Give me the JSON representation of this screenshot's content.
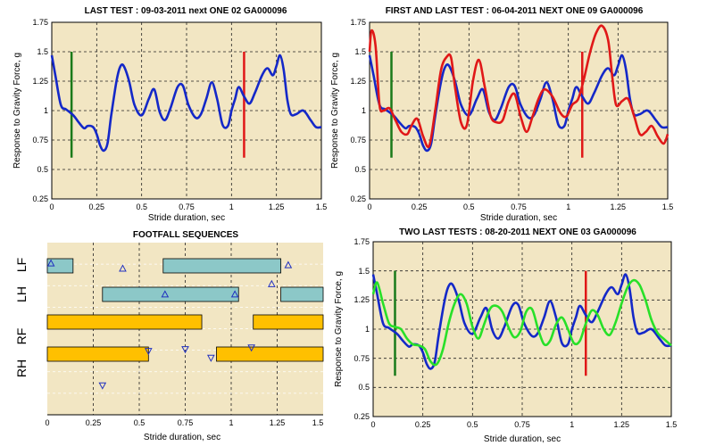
{
  "colors": {
    "panel_bg": "#f2e6c3",
    "grid": "#222222",
    "blue": "#1428c8",
    "red": "#e01818",
    "green_marker": "#1a7a1a",
    "light_green": "#28e028",
    "teal_bar": "#8cc8c8",
    "orange_bar": "#ffc000"
  },
  "chart_data": [
    {
      "id": "top-left",
      "type": "line",
      "title": "LAST TEST : 09-03-2011  next ONE 02 GA000096",
      "xlabel": "Stride duration, sec",
      "ylabel": "Response to Gravity Force, g",
      "xlim": [
        0,
        1.5
      ],
      "ylim": [
        0.25,
        1.75
      ],
      "xticks": [
        "0",
        "0.25",
        "0.5",
        "0.75",
        "1",
        "1.25",
        "1.5"
      ],
      "yticks": [
        "0.25",
        "0.5",
        "0.75",
        "1",
        "1.25",
        "1.5",
        "1.75"
      ],
      "grid": true,
      "markers": [
        {
          "x": 0.11,
          "y0": 0.6,
          "y1": 1.5,
          "color": "green_marker"
        },
        {
          "x": 1.07,
          "y0": 0.6,
          "y1": 1.5,
          "color": "red"
        }
      ],
      "series": [
        {
          "color": "blue",
          "x": [
            0,
            0.02,
            0.05,
            0.08,
            0.12,
            0.15,
            0.18,
            0.2,
            0.23,
            0.25,
            0.27,
            0.29,
            0.31,
            0.33,
            0.36,
            0.38,
            0.4,
            0.43,
            0.46,
            0.5,
            0.54,
            0.57,
            0.6,
            0.63,
            0.66,
            0.7,
            0.73,
            0.76,
            0.8,
            0.83,
            0.86,
            0.89,
            0.92,
            0.95,
            0.98,
            1.0,
            1.02,
            1.04,
            1.07,
            1.1,
            1.13,
            1.17,
            1.2,
            1.23,
            1.25,
            1.27,
            1.29,
            1.31,
            1.33,
            1.36,
            1.4,
            1.44,
            1.47,
            1.5
          ],
          "y": [
            1.47,
            1.3,
            1.05,
            1.01,
            0.96,
            0.9,
            0.85,
            0.87,
            0.86,
            0.8,
            0.7,
            0.66,
            0.72,
            0.95,
            1.25,
            1.37,
            1.38,
            1.25,
            1.05,
            0.96,
            1.1,
            1.18,
            0.99,
            0.92,
            1.02,
            1.2,
            1.21,
            1.05,
            0.94,
            0.97,
            1.1,
            1.24,
            1.1,
            0.88,
            0.87,
            1.0,
            1.1,
            1.2,
            1.12,
            1.06,
            1.15,
            1.3,
            1.36,
            1.3,
            1.38,
            1.47,
            1.35,
            1.1,
            0.97,
            0.97,
            1.0,
            0.92,
            0.86,
            0.86
          ]
        }
      ]
    },
    {
      "id": "top-right",
      "type": "line",
      "title": "FIRST AND LAST TEST : 06-04-2011  NEXT ONE 09 GA000096",
      "xlabel": "Stride duration, sec",
      "ylabel": "Response to Gravity Force, g",
      "xlim": [
        0,
        1.5
      ],
      "ylim": [
        0.25,
        1.75
      ],
      "xticks": [
        "0",
        "0.25",
        "0.5",
        "0.75",
        "1",
        "1.25",
        "1.5"
      ],
      "yticks": [
        "0.25",
        "0.5",
        "0.75",
        "1",
        "1.25",
        "1.5",
        "1.75"
      ],
      "grid": true,
      "markers": [
        {
          "x": 0.11,
          "y0": 0.6,
          "y1": 1.5,
          "color": "green_marker"
        },
        {
          "x": 1.07,
          "y0": 0.6,
          "y1": 1.5,
          "color": "red"
        }
      ],
      "series": [
        {
          "color": "blue",
          "x": [
            0,
            0.02,
            0.05,
            0.08,
            0.12,
            0.15,
            0.18,
            0.2,
            0.23,
            0.25,
            0.27,
            0.29,
            0.31,
            0.33,
            0.36,
            0.38,
            0.4,
            0.43,
            0.46,
            0.5,
            0.54,
            0.57,
            0.6,
            0.63,
            0.66,
            0.7,
            0.73,
            0.76,
            0.8,
            0.83,
            0.86,
            0.89,
            0.92,
            0.95,
            0.98,
            1.0,
            1.02,
            1.04,
            1.07,
            1.1,
            1.13,
            1.17,
            1.2,
            1.23,
            1.25,
            1.27,
            1.29,
            1.31,
            1.33,
            1.36,
            1.4,
            1.44,
            1.47,
            1.5
          ],
          "y": [
            1.47,
            1.3,
            1.05,
            1.01,
            0.96,
            0.9,
            0.85,
            0.87,
            0.86,
            0.8,
            0.7,
            0.66,
            0.72,
            0.95,
            1.25,
            1.37,
            1.38,
            1.25,
            1.05,
            0.96,
            1.1,
            1.18,
            0.99,
            0.92,
            1.02,
            1.2,
            1.21,
            1.05,
            0.94,
            0.97,
            1.1,
            1.24,
            1.1,
            0.88,
            0.87,
            1.0,
            1.1,
            1.2,
            1.12,
            1.06,
            1.15,
            1.3,
            1.36,
            1.3,
            1.38,
            1.47,
            1.35,
            1.1,
            0.97,
            0.97,
            1.0,
            0.92,
            0.86,
            0.86
          ]
        },
        {
          "color": "red",
          "x": [
            0,
            0.01,
            0.03,
            0.05,
            0.07,
            0.1,
            0.13,
            0.16,
            0.19,
            0.21,
            0.24,
            0.27,
            0.3,
            0.33,
            0.36,
            0.39,
            0.41,
            0.43,
            0.46,
            0.49,
            0.52,
            0.55,
            0.58,
            0.61,
            0.64,
            0.67,
            0.7,
            0.73,
            0.76,
            0.79,
            0.82,
            0.85,
            0.88,
            0.92,
            0.96,
            0.99,
            1.02,
            1.05,
            1.08,
            1.11,
            1.14,
            1.17,
            1.2,
            1.22,
            1.24,
            1.27,
            1.3,
            1.33,
            1.36,
            1.39,
            1.42,
            1.45,
            1.48,
            1.5
          ],
          "y": [
            1.5,
            1.68,
            1.55,
            1.05,
            1.0,
            1.02,
            0.92,
            0.82,
            0.8,
            0.87,
            0.93,
            0.78,
            0.7,
            1.0,
            1.35,
            1.46,
            1.45,
            1.2,
            0.9,
            0.88,
            1.25,
            1.43,
            1.2,
            0.95,
            0.9,
            0.92,
            1.08,
            1.14,
            0.95,
            0.82,
            0.95,
            1.1,
            1.18,
            1.12,
            0.98,
            0.95,
            1.05,
            1.1,
            1.28,
            1.5,
            1.66,
            1.72,
            1.6,
            1.3,
            1.05,
            1.08,
            1.1,
            0.96,
            0.8,
            0.82,
            0.87,
            0.78,
            0.72,
            0.8
          ]
        }
      ]
    },
    {
      "id": "bottom-left",
      "type": "gantt",
      "title": "FOOTFALL SEQUENCES",
      "xlabel": "Stride duration, sec",
      "xlim": [
        0,
        1.5
      ],
      "xticks": [
        "0",
        "0.25",
        "0.5",
        "0.75",
        "1",
        "1.25",
        "1.5"
      ],
      "rows": [
        "LF",
        "LH",
        "RF",
        "RH"
      ],
      "bars": [
        {
          "row": 0,
          "x0": 0,
          "x1": 0.14,
          "color": "teal_bar"
        },
        {
          "row": 0,
          "x0": 0.63,
          "x1": 1.27,
          "color": "teal_bar"
        },
        {
          "row": 1,
          "x0": 0.3,
          "x1": 1.04,
          "color": "teal_bar"
        },
        {
          "row": 1,
          "x0": 1.27,
          "x1": 1.5,
          "color": "teal_bar"
        },
        {
          "row": 2,
          "x0": 0,
          "x1": 0.84,
          "color": "orange_bar"
        },
        {
          "row": 2,
          "x0": 1.12,
          "x1": 1.5,
          "color": "orange_bar"
        },
        {
          "row": 3,
          "x0": 0,
          "x1": 0.55,
          "color": "orange_bar"
        },
        {
          "row": 3,
          "x0": 0.92,
          "x1": 1.5,
          "color": "orange_bar"
        }
      ],
      "up_markers": [
        {
          "x": 0.02,
          "y": 0.12
        },
        {
          "x": 0.41,
          "y": 0.15
        },
        {
          "x": 0.64,
          "y": 0.3
        },
        {
          "x": 1.02,
          "y": 0.3
        },
        {
          "x": 1.22,
          "y": 0.24
        },
        {
          "x": 1.31,
          "y": 0.13
        }
      ],
      "down_markers": [
        {
          "x": 0.55,
          "y": 0.63
        },
        {
          "x": 0.75,
          "y": 0.62
        },
        {
          "x": 0.89,
          "y": 0.67
        },
        {
          "x": 1.11,
          "y": 0.61
        },
        {
          "x": 0.3,
          "y": 0.83
        }
      ]
    },
    {
      "id": "bottom-right",
      "type": "line",
      "title": "TWO LAST TESTS : 08-20-2011  NEXT ONE 03 GA000096",
      "xlabel": "Stride duration, sec",
      "ylabel": "Response to Gravity Force, g",
      "xlim": [
        0,
        1.5
      ],
      "ylim": [
        0.25,
        1.75
      ],
      "xticks": [
        "0",
        "0.25",
        "0.5",
        "0.75",
        "1",
        "1.25",
        "1.5"
      ],
      "yticks": [
        "0.25",
        "0.5",
        "0.75",
        "1",
        "1.25",
        "1.5",
        "1.75"
      ],
      "grid": true,
      "markers": [
        {
          "x": 0.11,
          "y0": 0.6,
          "y1": 1.5,
          "color": "green_marker"
        },
        {
          "x": 1.07,
          "y0": 0.6,
          "y1": 1.5,
          "color": "red"
        }
      ],
      "series": [
        {
          "color": "blue",
          "x": [
            0,
            0.02,
            0.05,
            0.08,
            0.12,
            0.15,
            0.18,
            0.2,
            0.23,
            0.25,
            0.27,
            0.29,
            0.31,
            0.33,
            0.36,
            0.38,
            0.4,
            0.43,
            0.46,
            0.5,
            0.54,
            0.57,
            0.6,
            0.63,
            0.66,
            0.7,
            0.73,
            0.76,
            0.8,
            0.83,
            0.86,
            0.89,
            0.92,
            0.95,
            0.98,
            1.0,
            1.02,
            1.04,
            1.07,
            1.1,
            1.13,
            1.17,
            1.2,
            1.23,
            1.25,
            1.27,
            1.29,
            1.31,
            1.33,
            1.36,
            1.4,
            1.44,
            1.47,
            1.5
          ],
          "y": [
            1.47,
            1.3,
            1.05,
            1.01,
            0.96,
            0.9,
            0.85,
            0.87,
            0.86,
            0.8,
            0.7,
            0.66,
            0.72,
            0.95,
            1.25,
            1.37,
            1.38,
            1.25,
            1.05,
            0.96,
            1.1,
            1.18,
            0.99,
            0.92,
            1.02,
            1.2,
            1.21,
            1.05,
            0.94,
            0.97,
            1.1,
            1.24,
            1.1,
            0.88,
            0.87,
            1.0,
            1.1,
            1.2,
            1.12,
            1.06,
            1.15,
            1.3,
            1.36,
            1.3,
            1.38,
            1.47,
            1.35,
            1.1,
            0.97,
            0.97,
            1.0,
            0.92,
            0.86,
            0.86
          ]
        },
        {
          "color": "light_green",
          "x": [
            0,
            0.02,
            0.05,
            0.08,
            0.11,
            0.14,
            0.17,
            0.2,
            0.23,
            0.26,
            0.29,
            0.32,
            0.35,
            0.38,
            0.41,
            0.44,
            0.47,
            0.5,
            0.53,
            0.56,
            0.59,
            0.62,
            0.65,
            0.68,
            0.71,
            0.74,
            0.77,
            0.8,
            0.83,
            0.86,
            0.89,
            0.92,
            0.95,
            0.98,
            1.01,
            1.04,
            1.07,
            1.1,
            1.13,
            1.16,
            1.19,
            1.22,
            1.25,
            1.28,
            1.31,
            1.34,
            1.37,
            1.4,
            1.43,
            1.46,
            1.5
          ],
          "y": [
            1.3,
            1.4,
            1.22,
            1.05,
            1.02,
            1.0,
            0.92,
            0.87,
            0.86,
            0.83,
            0.72,
            0.7,
            0.82,
            1.05,
            1.22,
            1.3,
            1.22,
            1.02,
            0.92,
            1.05,
            1.18,
            1.2,
            1.15,
            1.02,
            0.93,
            0.98,
            1.15,
            1.17,
            1.0,
            0.87,
            0.9,
            1.04,
            1.1,
            1.0,
            0.88,
            0.9,
            1.05,
            1.16,
            1.12,
            1.0,
            0.95,
            1.06,
            1.22,
            1.36,
            1.42,
            1.38,
            1.25,
            1.08,
            0.97,
            0.92,
            0.86
          ]
        }
      ]
    }
  ]
}
